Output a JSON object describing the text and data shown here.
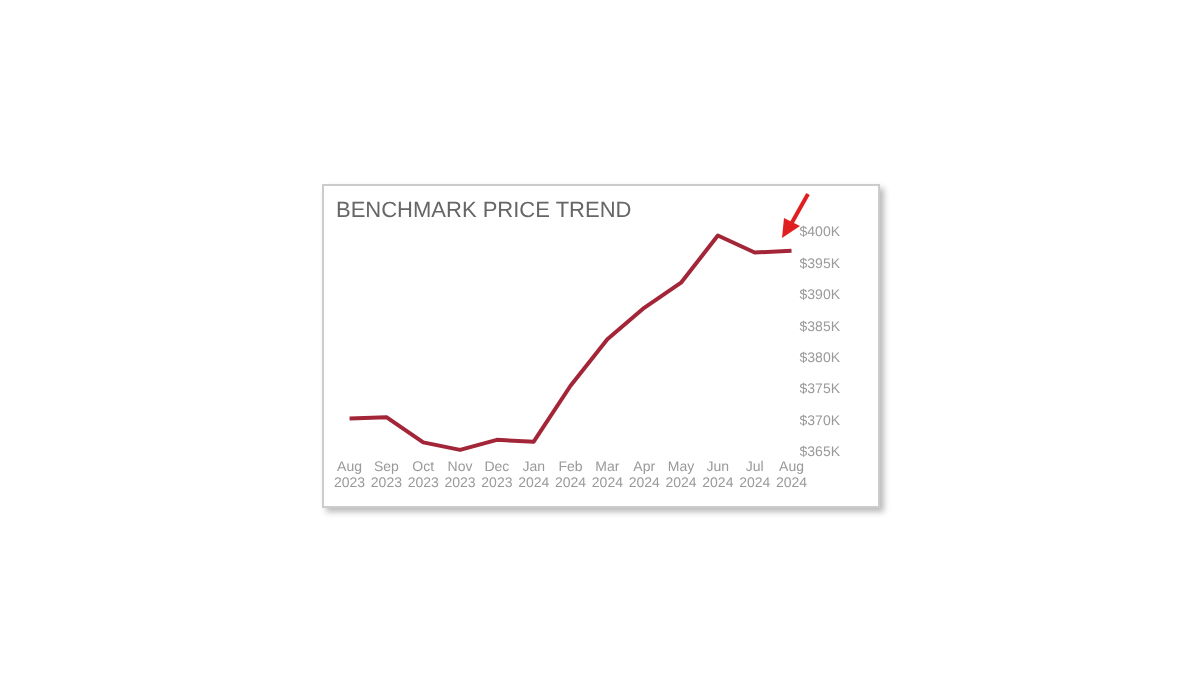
{
  "chart_data": {
    "type": "line",
    "title": "BENCHMARK PRICE TREND",
    "categories": [
      "Aug 2023",
      "Sep 2023",
      "Oct 2023",
      "Nov 2023",
      "Dec 2023",
      "Jan 2024",
      "Feb 2024",
      "Mar 2024",
      "Apr 2024",
      "May 2024",
      "Jun 2024",
      "Jul 2024",
      "Aug 2024"
    ],
    "series": [
      {
        "color": "#a32638",
        "values": [
          370.4,
          370.6,
          366.6,
          365.4,
          367.0,
          366.7,
          375.6,
          383.0,
          388.0,
          392.0,
          399.5,
          396.8,
          397.1
        ]
      }
    ],
    "ylim": [
      365,
      400
    ],
    "yticks": [
      {
        "value": 365,
        "label": "$365K"
      },
      {
        "value": 370,
        "label": "$370K"
      },
      {
        "value": 375,
        "label": "$375K"
      },
      {
        "value": 380,
        "label": "$380K"
      },
      {
        "value": 385,
        "label": "$385K"
      },
      {
        "value": 390,
        "label": "$390K"
      },
      {
        "value": 395,
        "label": "$395K"
      },
      {
        "value": 400,
        "label": "$400K"
      }
    ],
    "grid": false,
    "legend": false,
    "marker": "none",
    "line_style": "solid"
  }
}
